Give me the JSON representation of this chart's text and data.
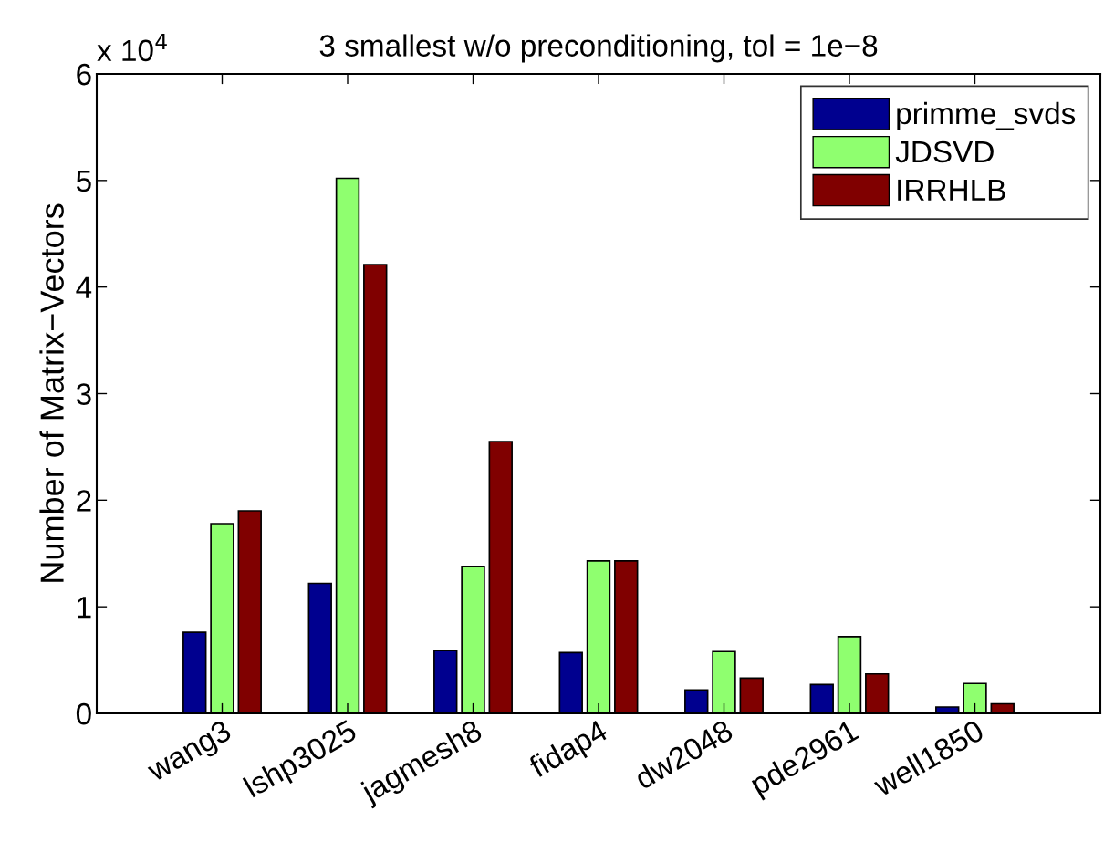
{
  "chart_data": {
    "type": "bar",
    "title": "3 smallest w/o preconditioning, tol = 1e−8",
    "ylabel": "Number of Matrix−Vectors",
    "annotations": [
      "x 10$^{4}$"
    ],
    "categories": [
      "wang3",
      "lshp3025",
      "jagmesh8",
      "fidap4",
      "dw2048",
      "pde2961",
      "well1850"
    ],
    "series": [
      {
        "name": "primme_svds",
        "color": "#00008f",
        "values": [
          0.76,
          1.22,
          0.59,
          0.57,
          0.22,
          0.27,
          0.06
        ]
      },
      {
        "name": "JDSVD",
        "color": "#8fff6f",
        "values": [
          1.78,
          5.02,
          1.38,
          1.43,
          0.58,
          0.72,
          0.28
        ]
      },
      {
        "name": "IRRHLB",
        "color": "#800000",
        "values": [
          1.9,
          4.21,
          2.55,
          1.43,
          0.33,
          0.37,
          0.09
        ]
      }
    ],
    "ylim": [
      0,
      6
    ],
    "yticks": [
      0,
      1,
      2,
      3,
      4,
      5,
      6
    ],
    "grid": false,
    "legend": "top right"
  }
}
